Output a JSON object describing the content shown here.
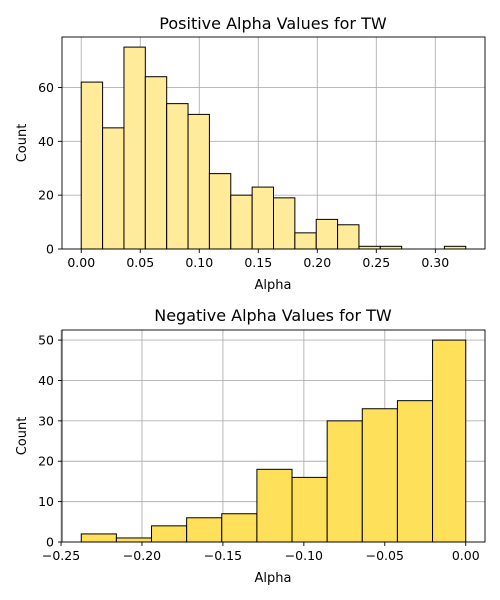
{
  "chart_data": [
    {
      "type": "bar",
      "title": "Positive Alpha Values for TW",
      "xlabel": "Alpha",
      "ylabel": "Count",
      "color": "#ffeb99",
      "bin_edges": [
        0.0,
        0.0181,
        0.0362,
        0.0543,
        0.0724,
        0.0905,
        0.1086,
        0.1267,
        0.1448,
        0.1629,
        0.181,
        0.1991,
        0.2172,
        0.2353,
        0.2534,
        0.2715,
        0.2896,
        0.3077,
        0.3258
      ],
      "values": [
        62,
        45,
        75,
        64,
        54,
        50,
        28,
        20,
        23,
        19,
        6,
        11,
        9,
        1,
        1,
        0,
        0,
        1
      ],
      "xlim": [
        -0.0163,
        0.3421
      ],
      "ylim": [
        0,
        78.75
      ],
      "xticks": [
        0.0,
        0.05,
        0.1,
        0.15,
        0.2,
        0.25,
        0.3
      ],
      "xtick_labels": [
        "0.00",
        "0.05",
        "0.10",
        "0.15",
        "0.20",
        "0.25",
        "0.30"
      ],
      "yticks": [
        0,
        20,
        40,
        60
      ],
      "ytick_labels": [
        "0",
        "20",
        "40",
        "60"
      ],
      "grid": true
    },
    {
      "type": "bar",
      "title": "Negative Alpha Values for TW",
      "xlabel": "Alpha",
      "ylabel": "Count",
      "color": "#ffe05a",
      "bin_edges": [
        -0.2375,
        -0.2158,
        -0.1941,
        -0.1724,
        -0.1507,
        -0.129,
        -0.1073,
        -0.0856,
        -0.0639,
        -0.0422,
        -0.0205,
        0.0
      ],
      "values": [
        2,
        1,
        4,
        6,
        7,
        18,
        16,
        30,
        33,
        35,
        50
      ],
      "xlim": [
        -0.2494,
        0.0119
      ],
      "ylim": [
        0,
        52.5
      ],
      "xticks": [
        -0.25,
        -0.2,
        -0.15,
        -0.1,
        -0.05,
        0.0
      ],
      "xtick_labels": [
        "−0.25",
        "−0.20",
        "−0.15",
        "−0.10",
        "−0.05",
        "0.00"
      ],
      "yticks": [
        0,
        10,
        20,
        30,
        40,
        50
      ],
      "ytick_labels": [
        "0",
        "10",
        "20",
        "30",
        "40",
        "50"
      ],
      "grid": true
    }
  ]
}
